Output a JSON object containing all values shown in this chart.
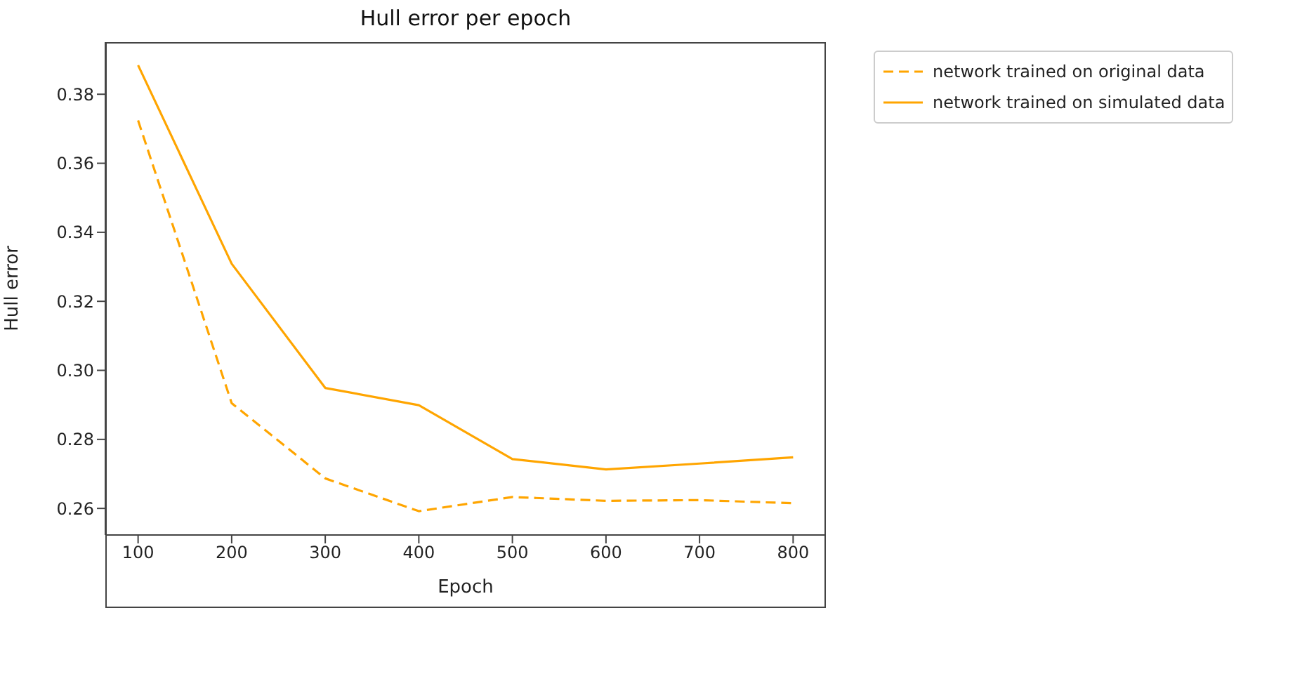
{
  "chart_data": {
    "type": "line",
    "title": "Hull error per epoch",
    "xlabel": "Epoch",
    "ylabel": "Hull error",
    "x": [
      100,
      200,
      300,
      400,
      500,
      600,
      700,
      800
    ],
    "series": [
      {
        "name": "network trained on original data",
        "color": "#ffa500",
        "line_style": "dashed",
        "values": [
          0.3724,
          0.2905,
          0.2687,
          0.2592,
          0.2633,
          0.2622,
          0.2624,
          0.2615
        ]
      },
      {
        "name": "network trained on simulated data",
        "color": "#ffa500",
        "line_style": "solid",
        "values": [
          0.3884,
          0.3309,
          0.2949,
          0.2899,
          0.2743,
          0.2713,
          0.273,
          0.2748
        ]
      }
    ],
    "xlim": [
      65,
      835
    ],
    "xticks": [
      100,
      200,
      300,
      400,
      500,
      600,
      700,
      800
    ],
    "ylim": [
      0.2523,
      0.3951
    ],
    "yticks": [
      {
        "value": 0.26,
        "label": "0.26"
      },
      {
        "value": 0.28,
        "label": "0.28"
      },
      {
        "value": 0.3,
        "label": "0.30"
      },
      {
        "value": 0.32,
        "label": "0.32"
      },
      {
        "value": 0.34,
        "label": "0.34"
      },
      {
        "value": 0.36,
        "label": "0.36"
      },
      {
        "value": 0.38,
        "label": "0.38"
      }
    ],
    "grid": false,
    "legend": "top right",
    "marker": "none"
  }
}
